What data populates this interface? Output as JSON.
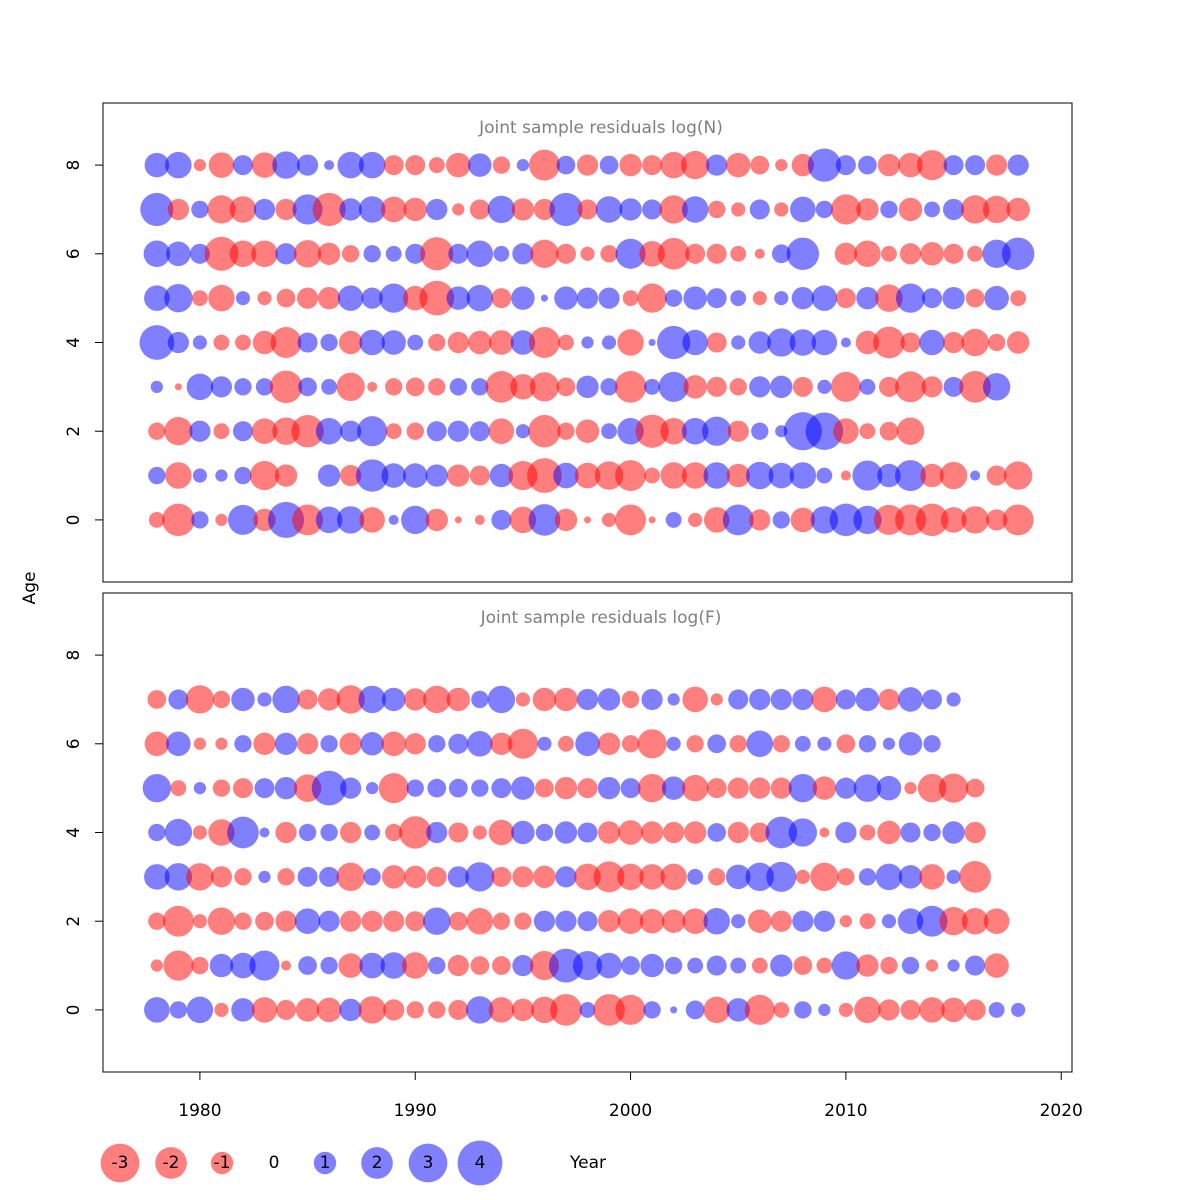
{
  "chart_data": {
    "type": "scatter",
    "subtype": "bubble",
    "xlabel": "Year",
    "ylabel": "Age",
    "xlim": [
      1975.5,
      2020.5
    ],
    "x_ticks": [
      1980,
      1990,
      2000,
      2010,
      2020
    ],
    "x_tick_labels": [
      "1980",
      "1990",
      "2000",
      "2010",
      "2020"
    ],
    "y_ticks": [
      0,
      2,
      4,
      6,
      8
    ],
    "y_tick_labels": [
      "0",
      "2",
      "4",
      "6",
      "8"
    ],
    "ylim": [
      -1.4,
      9.4
    ],
    "years": [
      1978,
      1979,
      1980,
      1981,
      1982,
      1983,
      1984,
      1985,
      1986,
      1987,
      1988,
      1989,
      1990,
      1991,
      1992,
      1993,
      1994,
      1995,
      1996,
      1997,
      1998,
      1999,
      2000,
      2001,
      2002,
      2003,
      2004,
      2005,
      2006,
      2007,
      2008,
      2009,
      2010,
      2011,
      2012,
      2013,
      2014,
      2015,
      2016,
      2017,
      2018
    ],
    "colors": {
      "positive": "#0000ff",
      "negative": "#ff0000",
      "opacity": 0.5
    },
    "legend": {
      "placement": "bottom-left",
      "values": [
        -3,
        -2,
        -1,
        0,
        1,
        2,
        3,
        4
      ],
      "labels": [
        "-3",
        "-2",
        "-1",
        "0",
        "1",
        "2",
        "3",
        "4"
      ]
    },
    "panels": [
      {
        "title": "Joint sample residuals log(N)",
        "series": [
          {
            "age": 0,
            "values": [
              -0.5,
              -2.1,
              0.6,
              -0.3,
              1.8,
              -1.0,
              2.6,
              -1.9,
              1.4,
              1.5,
              -1.3,
              0.2,
              1.6,
              -1.0,
              -0.1,
              -0.2,
              0.8,
              -1.4,
              2.0,
              -1.0,
              -0.1,
              -0.4,
              -1.9,
              -0.1,
              0.5,
              -0.4,
              -1.3,
              1.9,
              -0.9,
              0.6,
              -1.2,
              1.5,
              2.1,
              1.6,
              -1.8,
              -1.9,
              -2.1,
              -1.3,
              -1.5,
              -0.9,
              -1.9
            ]
          },
          {
            "age": 1,
            "values": [
              0.6,
              -1.4,
              0.4,
              0.3,
              0.6,
              -1.7,
              -1.0,
              0.0,
              1.0,
              -0.9,
              2.1,
              1.2,
              1.2,
              1.0,
              -1.0,
              -0.8,
              1.1,
              -1.7,
              -2.4,
              1.3,
              -1.3,
              -1.6,
              -1.9,
              -0.5,
              -1.4,
              -1.4,
              1.4,
              -1.1,
              1.5,
              1.3,
              1.4,
              0.5,
              -0.2,
              1.8,
              1.1,
              1.9,
              -1.1,
              -1.5,
              0.2,
              -0.8,
              -1.6
            ]
          },
          {
            "age": 2,
            "values": [
              -0.6,
              -1.6,
              0.9,
              -0.5,
              0.8,
              -1.3,
              -1.5,
              -2.1,
              1.4,
              0.9,
              1.8,
              -0.5,
              -0.6,
              0.8,
              0.9,
              0.8,
              -1.3,
              0.4,
              -2.1,
              -0.6,
              -1.1,
              0.5,
              1.4,
              -2.2,
              -1.4,
              1.4,
              1.7,
              -0.9,
              0.6,
              0.3,
              2.9,
              2.8,
              -1.3,
              -0.5,
              -0.7,
              -1.5
            ]
          },
          {
            "age": 3,
            "values": [
              0.3,
              -0.1,
              1.4,
              0.9,
              0.6,
              0.6,
              -2.1,
              0.7,
              0.5,
              -1.6,
              -0.2,
              -0.6,
              -0.7,
              -0.6,
              0.6,
              0.6,
              -2.0,
              -1.3,
              -1.7,
              -0.7,
              1.0,
              0.6,
              -2.0,
              0.5,
              1.8,
              -1.1,
              -0.8,
              -0.6,
              0.9,
              1.0,
              -0.8,
              0.4,
              -1.8,
              0.5,
              -0.8,
              -1.9,
              -0.9,
              0.8,
              -2.0,
              1.5
            ]
          },
          {
            "age": 4,
            "values": [
              2.4,
              0.9,
              0.4,
              -0.5,
              -0.5,
              -1.1,
              -1.9,
              0.8,
              0.6,
              -1.1,
              1.3,
              1.2,
              0.5,
              -0.6,
              -0.9,
              -1.1,
              -1.2,
              1.2,
              -1.9,
              -0.5,
              0.3,
              0.4,
              -1.4,
              0.1,
              2.2,
              1.3,
              -0.8,
              0.4,
              1.0,
              1.6,
              1.4,
              1.3,
              0.2,
              -1.1,
              -2.0,
              -0.8,
              1.3,
              -0.9,
              -1.5,
              -0.6,
              -1.0
            ]
          },
          {
            "age": 5,
            "values": [
              1.3,
              1.6,
              -0.5,
              -1.4,
              0.4,
              -0.4,
              -0.7,
              -0.9,
              -1.0,
              1.3,
              0.9,
              1.7,
              -1.2,
              -2.4,
              1.1,
              1.4,
              -0.8,
              1.1,
              0.1,
              1.1,
              0.9,
              0.9,
              -0.5,
              -1.7,
              0.6,
              1.1,
              0.8,
              0.5,
              -0.4,
              0.4,
              1.0,
              1.3,
              -0.8,
              1.0,
              -1.5,
              1.7,
              0.8,
              1.0,
              -0.7,
              1.2,
              -0.5
            ]
          },
          {
            "age": 6,
            "values": [
              1.4,
              1.2,
              0.8,
              -2.3,
              -1.4,
              -1.4,
              0.9,
              -1.5,
              -1.0,
              -0.6,
              0.6,
              0.5,
              0.8,
              -2.2,
              0.8,
              1.4,
              0.5,
              0.9,
              -1.6,
              -0.8,
              -0.4,
              -0.6,
              1.8,
              -1.3,
              -2.0,
              -0.8,
              -0.8,
              -0.5,
              -0.2,
              0.7,
              2.1,
              0.0,
              -1.0,
              -1.4,
              -0.5,
              -0.9,
              -1.1,
              -0.8,
              -0.5,
              1.6,
              2.1
            ]
          },
          {
            "age": 7,
            "values": [
              2.2,
              -0.9,
              0.6,
              -1.6,
              -1.4,
              0.9,
              -0.9,
              1.8,
              -2.2,
              1.0,
              1.4,
              -1.3,
              -1.1,
              0.9,
              -0.3,
              -0.8,
              1.5,
              -1.0,
              -0.9,
              2.2,
              -0.8,
              1.4,
              1.0,
              0.8,
              -1.6,
              1.4,
              -0.6,
              -0.4,
              0.8,
              -0.4,
              1.3,
              0.6,
              -1.8,
              -1.0,
              0.6,
              -1.1,
              0.5,
              0.9,
              -1.6,
              -1.5,
              -1.1
            ]
          },
          {
            "age": 8,
            "values": [
              1.2,
              1.4,
              -0.3,
              -1.3,
              0.8,
              -1.3,
              1.5,
              0.9,
              0.2,
              1.4,
              1.4,
              -0.8,
              -0.8,
              -0.5,
              -1.2,
              1.1,
              -0.6,
              0.3,
              -1.9,
              0.7,
              -0.9,
              0.7,
              -1.0,
              -0.8,
              -1.4,
              -1.6,
              0.9,
              -1.2,
              -0.7,
              -0.3,
              -1.0,
              2.2,
              0.8,
              0.7,
              -1.0,
              -1.2,
              -1.8,
              0.8,
              0.8,
              -0.9,
              0.9
            ]
          }
        ]
      },
      {
        "title": "Joint sample residuals log(F)",
        "series": [
          {
            "age": 0,
            "values": [
              1.3,
              0.6,
              1.4,
              -0.4,
              1.1,
              -1.3,
              -0.8,
              -1.1,
              -1.2,
              1.0,
              -1.5,
              -0.9,
              -0.6,
              -0.6,
              -0.8,
              1.5,
              -1.3,
              -1.0,
              -1.4,
              -2.0,
              0.5,
              -2.0,
              -1.8,
              0.6,
              0.1,
              0.7,
              -1.4,
              1.1,
              -1.8,
              -0.5,
              0.6,
              0.3,
              -0.4,
              -1.4,
              -0.9,
              -0.8,
              -1.3,
              -1.2,
              -0.9,
              0.5,
              0.4
            ]
          },
          {
            "age": 1,
            "values": [
              -0.3,
              -1.8,
              -0.6,
              1.1,
              1.3,
              1.8,
              -0.2,
              0.7,
              0.6,
              -1.2,
              1.3,
              1.4,
              -1.4,
              0.6,
              -0.9,
              -0.7,
              -0.7,
              0.9,
              -1.7,
              2.3,
              1.7,
              1.3,
              0.7,
              1.1,
              0.6,
              0.5,
              0.8,
              0.5,
              -0.5,
              1.0,
              -0.7,
              -0.5,
              1.6,
              -1.0,
              -0.6,
              0.6,
              -0.3,
              0.3,
              0.8,
              -1.2
            ]
          },
          {
            "age": 2,
            "values": [
              -0.6,
              -1.9,
              -0.4,
              -1.5,
              -0.6,
              -0.7,
              -0.9,
              1.3,
              0.9,
              -0.9,
              -0.9,
              -0.9,
              -0.8,
              1.5,
              -0.7,
              -1.4,
              -0.6,
              -0.6,
              0.9,
              0.9,
              0.8,
              -1.0,
              -1.3,
              -1.2,
              -1.1,
              -1.3,
              1.4,
              0.4,
              -1.1,
              -0.9,
              0.9,
              0.9,
              -0.3,
              -0.5,
              0.4,
              1.3,
              1.9,
              -1.6,
              -1.4,
              -1.3
            ]
          },
          {
            "age": 3,
            "values": [
              1.3,
              1.5,
              -1.5,
              -0.9,
              -0.6,
              0.3,
              -0.6,
              0.8,
              0.8,
              -1.6,
              0.6,
              -1.1,
              -1.0,
              -0.8,
              0.9,
              1.7,
              -0.8,
              -0.9,
              -1.0,
              0.9,
              -1.4,
              -1.9,
              -1.4,
              -1.3,
              -1.4,
              0.5,
              -0.6,
              1.2,
              1.6,
              1.8,
              -0.4,
              -1.6,
              -0.6,
              0.6,
              1.4,
              1.1,
              -1.3,
              0.4,
              -2.0
            ]
          },
          {
            "age": 4,
            "values": [
              0.6,
              1.5,
              -0.4,
              -1.4,
              2.0,
              0.2,
              -0.9,
              0.6,
              0.6,
              -0.9,
              0.5,
              -0.6,
              -2.1,
              0.9,
              -0.8,
              -0.4,
              -1.3,
              1.1,
              0.6,
              1.0,
              0.8,
              -1.0,
              -1.2,
              -1.0,
              -0.9,
              -1.0,
              0.7,
              -0.9,
              -0.8,
              2.0,
              1.6,
              -0.2,
              0.9,
              -0.5,
              -1.1,
              0.8,
              0.6,
              1.0,
              -0.9
            ]
          },
          {
            "age": 5,
            "values": [
              1.6,
              -0.5,
              0.3,
              -0.6,
              -0.8,
              0.8,
              1.0,
              -1.5,
              2.4,
              0.9,
              0.3,
              -1.8,
              0.6,
              0.7,
              0.7,
              0.6,
              0.8,
              1.1,
              -0.7,
              -1.0,
              -0.8,
              1.0,
              0.8,
              -1.6,
              1.1,
              -1.4,
              -0.8,
              -0.9,
              -0.9,
              -0.9,
              1.6,
              -1.1,
              0.9,
              1.5,
              1.2,
              -0.3,
              -1.6,
              -1.7,
              -0.7
            ]
          },
          {
            "age": 6,
            "values": [
              -1.2,
              1.2,
              -0.3,
              -0.3,
              0.6,
              -1.0,
              1.0,
              -0.9,
              0.6,
              -1.0,
              1.1,
              -1.2,
              -0.9,
              0.6,
              0.8,
              1.3,
              -1.0,
              -1.8,
              0.4,
              -0.5,
              1.2,
              -1.0,
              -0.6,
              -1.7,
              0.4,
              -0.6,
              0.7,
              -0.6,
              1.4,
              -0.6,
              0.5,
              0.4,
              -0.7,
              0.6,
              0.3,
              1.1,
              0.6
            ]
          },
          {
            "age": 7,
            "values": [
              -0.7,
              0.8,
              -1.6,
              -0.6,
              1.1,
              0.4,
              1.5,
              -0.8,
              -1.0,
              -1.6,
              1.5,
              1.1,
              -1.0,
              -1.5,
              -1.1,
              0.6,
              1.5,
              -0.4,
              -1.1,
              -1.1,
              0.9,
              1.0,
              -0.6,
              0.9,
              0.3,
              -1.3,
              -0.3,
              0.8,
              0.9,
              0.9,
              0.9,
              -1.3,
              0.8,
              1.1,
              -0.9,
              1.2,
              0.8,
              0.4
            ]
          }
        ]
      }
    ]
  }
}
